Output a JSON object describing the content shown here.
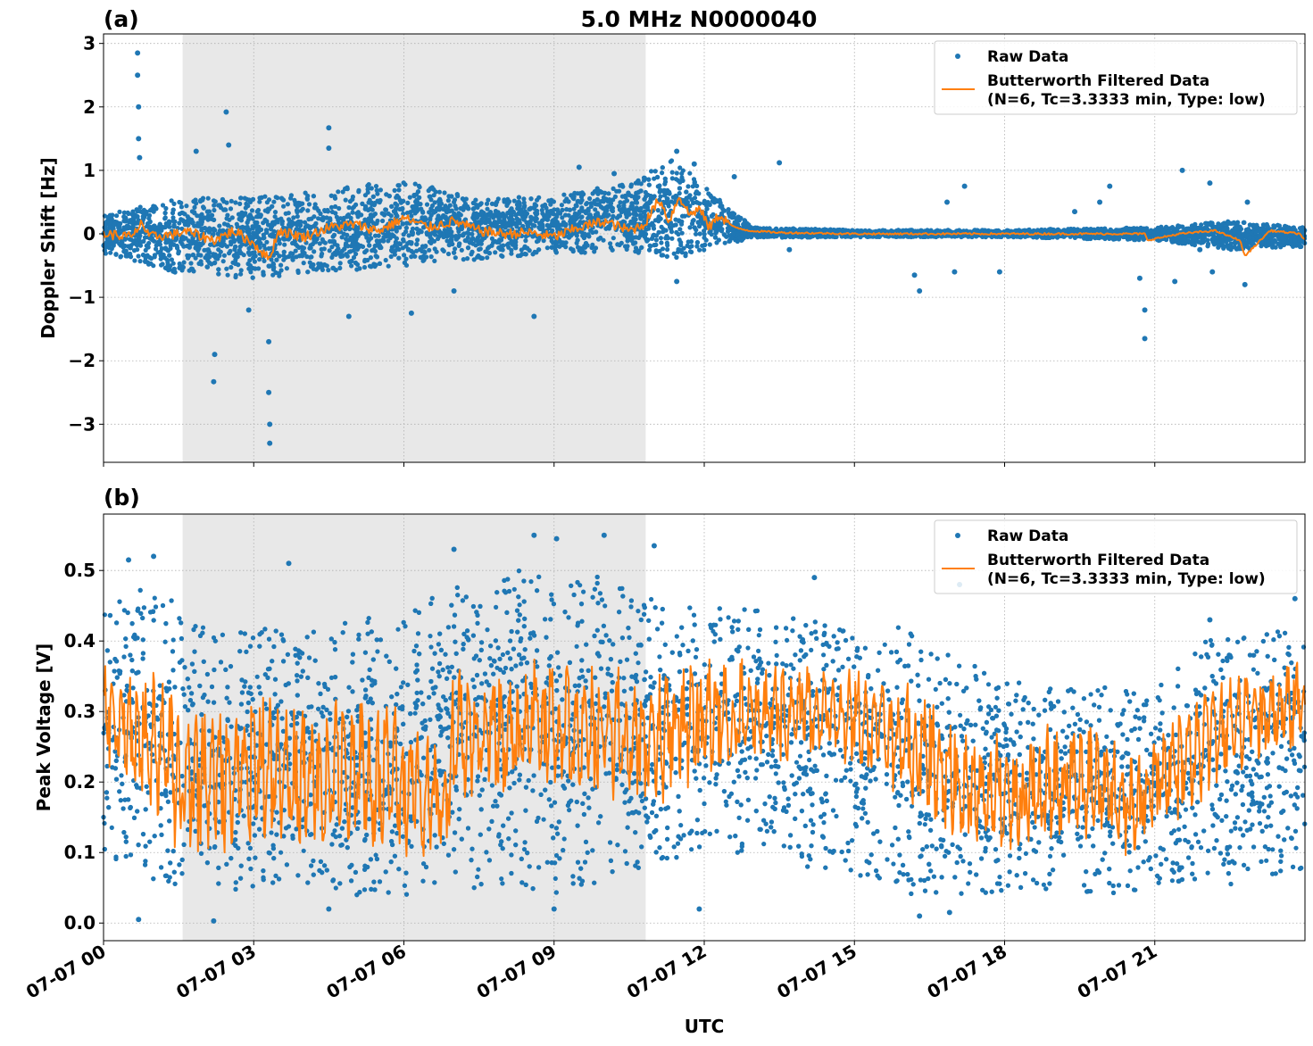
{
  "figure": {
    "title": "5.0 MHz N0000040",
    "xlabel": "UTC"
  },
  "colors": {
    "raw": "#1f77b4",
    "filtered": "#ff7f0e",
    "shade": "#e8e8e8",
    "grid": "#b0b0b0"
  },
  "chart_data": [
    {
      "type": "scatter",
      "panel_label": "(a)",
      "title": "5.0 MHz N0000040",
      "ylabel": "Doppler Shift [Hz]",
      "xlabel": "",
      "x_unit": "hours UTC on 07-07",
      "xlim": [
        0,
        24
      ],
      "ylim": [
        -3.6,
        3.15
      ],
      "x_ticks": [
        0,
        3,
        6,
        9,
        12,
        15,
        18,
        21
      ],
      "x_tick_labels": [
        "07-07 00",
        "07-07 03",
        "07-07 06",
        "07-07 09",
        "07-07 12",
        "07-07 15",
        "07-07 18",
        "07-07 21"
      ],
      "y_ticks": [
        3,
        2,
        1,
        0,
        -1,
        -2,
        -3
      ],
      "y_tick_labels": [
        "3",
        "2",
        "1",
        "0",
        "−1",
        "−2",
        "−3"
      ],
      "shaded_x_range": [
        1.58,
        10.83
      ],
      "grid": true,
      "legend": {
        "placement": "top-right",
        "entries": [
          "Raw Data",
          "Butterworth Filtered Data",
          "(N=6, Tc=3.3333 min, Type: low)"
        ]
      },
      "series": [
        {
          "name": "Raw Data",
          "style": "points",
          "envelope_hours": [
            0,
            1.5,
            3,
            4.5,
            6,
            7.5,
            9,
            10.5,
            11.4,
            12.5,
            13,
            15,
            18,
            21,
            22.5,
            24
          ],
          "envelope_high": [
            0.3,
            0.55,
            0.6,
            0.7,
            0.85,
            0.55,
            0.6,
            0.8,
            1.2,
            0.4,
            0.1,
            0.06,
            0.06,
            0.1,
            0.2,
            0.1
          ],
          "envelope_low": [
            -0.3,
            -0.65,
            -0.7,
            -0.6,
            -0.5,
            -0.4,
            -0.3,
            -0.3,
            -0.4,
            -0.15,
            -0.06,
            -0.05,
            -0.05,
            -0.1,
            -0.25,
            -0.2
          ],
          "outliers": [
            {
              "x": 0.68,
              "y": 2.85
            },
            {
              "x": 0.68,
              "y": 2.5
            },
            {
              "x": 0.7,
              "y": 2.0
            },
            {
              "x": 0.7,
              "y": 1.5
            },
            {
              "x": 0.72,
              "y": 1.2
            },
            {
              "x": 2.45,
              "y": 1.92
            },
            {
              "x": 2.5,
              "y": 1.4
            },
            {
              "x": 4.5,
              "y": 1.67
            },
            {
              "x": 4.5,
              "y": 1.35
            },
            {
              "x": 2.2,
              "y": -2.33
            },
            {
              "x": 2.22,
              "y": -1.9
            },
            {
              "x": 3.32,
              "y": -3.3
            },
            {
              "x": 3.32,
              "y": -3.0
            },
            {
              "x": 3.3,
              "y": -2.5
            },
            {
              "x": 3.3,
              "y": -1.7
            },
            {
              "x": 2.9,
              "y": -1.2
            },
            {
              "x": 1.85,
              "y": 1.3
            },
            {
              "x": 10.2,
              "y": 0.95
            },
            {
              "x": 9.5,
              "y": 1.05
            },
            {
              "x": 8.6,
              "y": -1.3
            },
            {
              "x": 6.15,
              "y": -1.25
            },
            {
              "x": 4.9,
              "y": -1.3
            },
            {
              "x": 13.5,
              "y": 1.12
            },
            {
              "x": 13.7,
              "y": -0.25
            },
            {
              "x": 16.3,
              "y": -0.9
            },
            {
              "x": 16.2,
              "y": -0.65
            },
            {
              "x": 17.0,
              "y": -0.6
            },
            {
              "x": 16.85,
              "y": 0.5
            },
            {
              "x": 17.2,
              "y": 0.75
            },
            {
              "x": 17.9,
              "y": -0.6
            },
            {
              "x": 19.4,
              "y": 0.35
            },
            {
              "x": 19.9,
              "y": 0.5
            },
            {
              "x": 20.1,
              "y": 0.75
            },
            {
              "x": 20.8,
              "y": -1.65
            },
            {
              "x": 20.8,
              "y": -1.2
            },
            {
              "x": 20.7,
              "y": -0.7
            },
            {
              "x": 21.4,
              "y": -0.75
            },
            {
              "x": 21.55,
              "y": 1.0
            },
            {
              "x": 21.9,
              "y": -0.25
            },
            {
              "x": 22.1,
              "y": 0.8
            },
            {
              "x": 22.15,
              "y": -0.6
            },
            {
              "x": 22.8,
              "y": -0.8
            },
            {
              "x": 22.85,
              "y": 0.5
            },
            {
              "x": 11.45,
              "y": -0.75
            },
            {
              "x": 11.45,
              "y": 1.3
            },
            {
              "x": 11.8,
              "y": 1.1
            },
            {
              "x": 12.6,
              "y": 0.9
            },
            {
              "x": 7.0,
              "y": -0.9
            }
          ]
        },
        {
          "name": "Butterworth Filtered Data",
          "style": "line",
          "hours": [
            0,
            0.6,
            0.75,
            0.9,
            1.5,
            1.6,
            2.2,
            2.6,
            3.0,
            3.3,
            3.5,
            4.0,
            4.5,
            5.0,
            5.5,
            6.0,
            6.5,
            7.0,
            7.5,
            8.0,
            8.5,
            9.0,
            9.5,
            10.0,
            10.5,
            10.8,
            11.1,
            11.3,
            11.5,
            11.7,
            11.9,
            12.1,
            12.3,
            12.6,
            12.9,
            13.5,
            15,
            18,
            20.8,
            20.85,
            21.5,
            22.2,
            22.7,
            22.8,
            23.3,
            23.9,
            24
          ],
          "values": [
            0.0,
            -0.05,
            0.2,
            -0.05,
            0.0,
            0.05,
            -0.1,
            0.05,
            -0.15,
            -0.4,
            0.05,
            -0.05,
            0.1,
            0.15,
            0.05,
            0.25,
            0.1,
            0.2,
            0.05,
            0.0,
            0.02,
            -0.05,
            0.1,
            0.2,
            0.05,
            0.15,
            0.55,
            0.2,
            0.6,
            0.3,
            0.4,
            0.1,
            0.3,
            0.1,
            0.05,
            0.02,
            0.0,
            0.0,
            0.0,
            -0.1,
            0.0,
            0.05,
            -0.1,
            -0.35,
            0.05,
            0.0,
            -0.1
          ]
        }
      ]
    },
    {
      "type": "scatter",
      "panel_label": "(b)",
      "title": "",
      "ylabel": "Peak Voltage [V]",
      "xlabel": "UTC",
      "x_unit": "hours UTC on 07-07",
      "xlim": [
        0,
        24
      ],
      "ylim": [
        -0.025,
        0.58
      ],
      "x_ticks": [
        0,
        3,
        6,
        9,
        12,
        15,
        18,
        21
      ],
      "x_tick_labels": [
        "07-07 00",
        "07-07 03",
        "07-07 06",
        "07-07 09",
        "07-07 12",
        "07-07 15",
        "07-07 18",
        "07-07 21"
      ],
      "y_ticks": [
        0.5,
        0.4,
        0.3,
        0.2,
        0.1,
        0.0
      ],
      "y_tick_labels": [
        "0.5",
        "0.4",
        "0.3",
        "0.2",
        "0.1",
        "0.0"
      ],
      "shaded_x_range": [
        1.58,
        10.83
      ],
      "grid": true,
      "legend": {
        "placement": "top-right",
        "entries": [
          "Raw Data",
          "Butterworth Filtered Data",
          "(N=6, Tc=3.3333 min, Type: low)"
        ]
      },
      "series": [
        {
          "name": "Raw Data",
          "style": "points",
          "envelope_hours": [
            0,
            1,
            2,
            3,
            4,
            5,
            6,
            7,
            8,
            9,
            10,
            11,
            12,
            13,
            14,
            15,
            16,
            17,
            18,
            19,
            20,
            21,
            22,
            23,
            24
          ],
          "envelope_high": [
            0.45,
            0.48,
            0.42,
            0.42,
            0.44,
            0.43,
            0.44,
            0.48,
            0.5,
            0.5,
            0.49,
            0.46,
            0.45,
            0.45,
            0.43,
            0.42,
            0.42,
            0.38,
            0.36,
            0.33,
            0.34,
            0.33,
            0.4,
            0.41,
            0.42
          ],
          "envelope_low": [
            0.08,
            0.05,
            0.04,
            0.05,
            0.05,
            0.04,
            0.04,
            0.05,
            0.05,
            0.04,
            0.05,
            0.08,
            0.1,
            0.1,
            0.08,
            0.07,
            0.04,
            0.04,
            0.04,
            0.05,
            0.04,
            0.05,
            0.06,
            0.05,
            0.08
          ],
          "outliers": [
            {
              "x": 0.5,
              "y": 0.515
            },
            {
              "x": 1.0,
              "y": 0.52
            },
            {
              "x": 3.7,
              "y": 0.51
            },
            {
              "x": 7.0,
              "y": 0.53
            },
            {
              "x": 8.6,
              "y": 0.55
            },
            {
              "x": 9.05,
              "y": 0.545
            },
            {
              "x": 10.0,
              "y": 0.55
            },
            {
              "x": 11.0,
              "y": 0.535
            },
            {
              "x": 0.7,
              "y": 0.005
            },
            {
              "x": 2.2,
              "y": 0.003
            },
            {
              "x": 4.5,
              "y": 0.02
            },
            {
              "x": 9.0,
              "y": 0.02
            },
            {
              "x": 11.9,
              "y": 0.02
            },
            {
              "x": 16.3,
              "y": 0.01
            },
            {
              "x": 16.9,
              "y": 0.015
            },
            {
              "x": 17.1,
              "y": 0.48
            },
            {
              "x": 14.2,
              "y": 0.49
            },
            {
              "x": 22.1,
              "y": 0.43
            },
            {
              "x": 23.8,
              "y": 0.46
            }
          ]
        },
        {
          "name": "Butterworth Filtered Data",
          "style": "line",
          "hours": [
            0,
            0.6,
            1.0,
            1.6,
            3.0,
            4.0,
            5.0,
            6.0,
            6.8,
            7.0,
            8.0,
            9.0,
            10.0,
            11.0,
            12.0,
            13.0,
            14.0,
            15.0,
            16.0,
            17.0,
            18.0,
            19.0,
            20.0,
            20.6,
            21.5,
            22.5,
            23.5,
            24
          ],
          "mean": [
            0.3,
            0.28,
            0.25,
            0.2,
            0.22,
            0.2,
            0.22,
            0.2,
            0.17,
            0.27,
            0.27,
            0.28,
            0.27,
            0.26,
            0.29,
            0.3,
            0.3,
            0.3,
            0.26,
            0.2,
            0.18,
            0.2,
            0.2,
            0.16,
            0.23,
            0.28,
            0.3,
            0.32
          ],
          "amplitude": [
            0.06,
            0.07,
            0.09,
            0.09,
            0.09,
            0.09,
            0.09,
            0.09,
            0.06,
            0.08,
            0.08,
            0.08,
            0.08,
            0.08,
            0.07,
            0.06,
            0.06,
            0.06,
            0.07,
            0.07,
            0.07,
            0.07,
            0.07,
            0.06,
            0.07,
            0.06,
            0.05,
            0.05
          ]
        }
      ]
    }
  ]
}
